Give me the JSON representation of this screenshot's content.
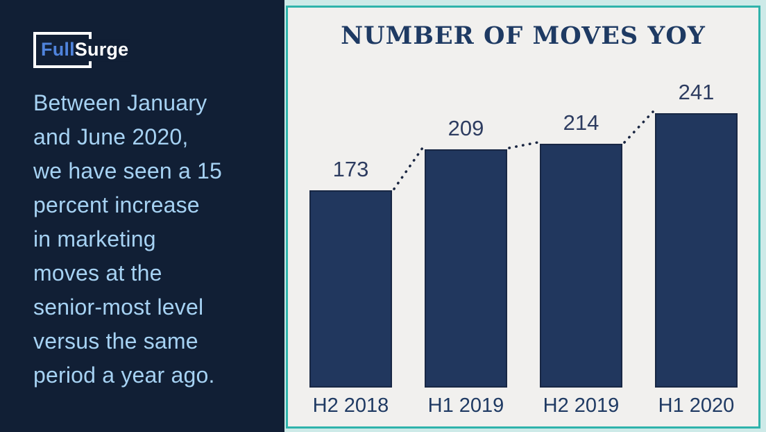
{
  "left_panel": {
    "logo": {
      "part1": "Full",
      "part2": "Surge"
    },
    "paragraph": "Between January\nand June 2020,\nwe have seen a 15\npercent increase\nin marketing\nmoves at the\nsenior-most level\nversus the same\nperiod a year ago."
  },
  "chart_data": {
    "type": "bar",
    "title": "NUMBER OF MOVES YOY",
    "categories": [
      "H2 2018",
      "H1 2019",
      "H2 2019",
      "H1 2020"
    ],
    "values": [
      173,
      209,
      214,
      241
    ],
    "xlabel": "",
    "ylabel": "",
    "ylim": [
      0,
      241
    ],
    "grid": false,
    "legend": false,
    "annotations": "dotted connector line between successive bar tops",
    "bar_color": "#21375e",
    "value_label_color": "#2d3c60",
    "category_label_color": "#1f3a63",
    "connector_color": "#1b2742"
  },
  "colors": {
    "left_background": "#111f35",
    "left_text": "#a6d2f3",
    "logo_blue": "#4f83dc",
    "logo_white": "#ffffff",
    "panel_rim_mint": "#cdeae8",
    "panel_border_teal": "#2fb3ab",
    "panel_background": "#f1f0ee",
    "title_navy": "#1e3a63"
  }
}
